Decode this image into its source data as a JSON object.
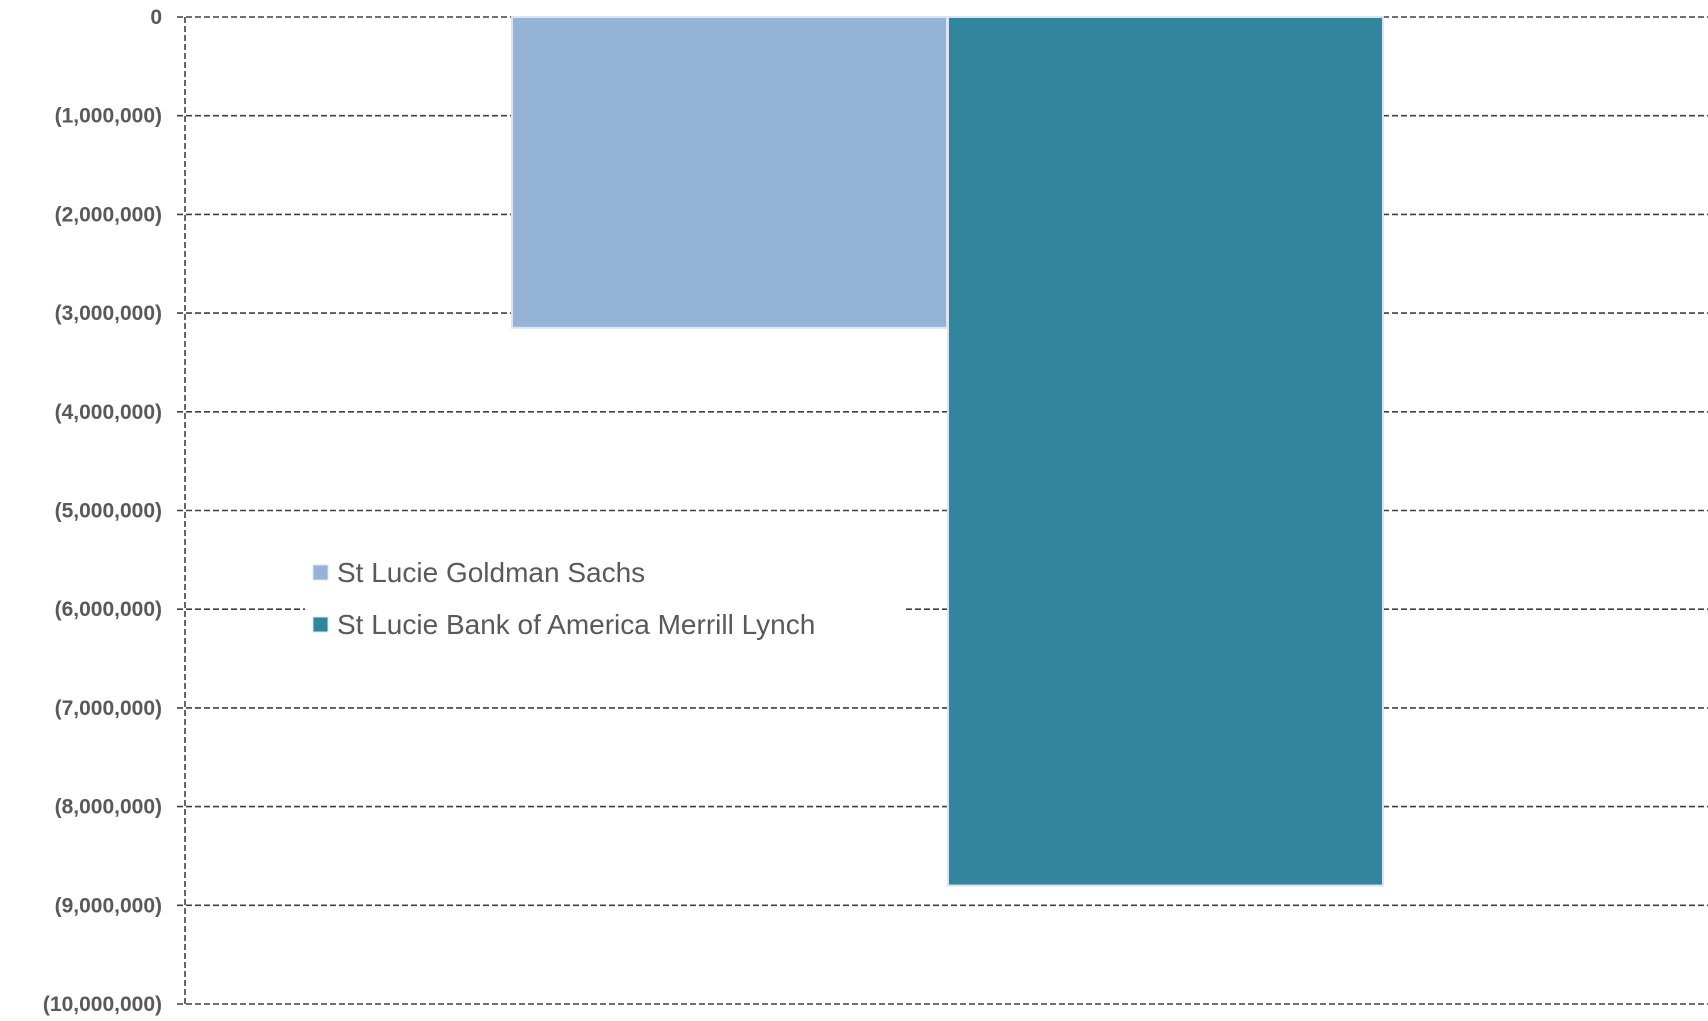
{
  "chart_data": {
    "type": "bar",
    "series": [
      {
        "name": "St Lucie Goldman Sachs",
        "value": -3150000,
        "color": "#95b3d7"
      },
      {
        "name": "St Lucie Bank of America Merrill Lynch",
        "value": -8800000,
        "color": "#31859c"
      }
    ],
    "ylim": [
      -10000000,
      0
    ],
    "yticks": [
      0,
      -1000000,
      -2000000,
      -3000000,
      -4000000,
      -5000000,
      -6000000,
      -7000000,
      -8000000,
      -9000000,
      -10000000
    ],
    "ytick_labels": [
      "0",
      "(1,000,000)",
      "(2,000,000)",
      "(3,000,000)",
      "(4,000,000)",
      "(5,000,000)",
      "(6,000,000)",
      "(7,000,000)",
      "(8,000,000)",
      "(9,000,000)",
      "(10,000,000)"
    ],
    "grid": true,
    "legend_position": "center-left",
    "bar_edge_color": "#dbe5f1"
  }
}
